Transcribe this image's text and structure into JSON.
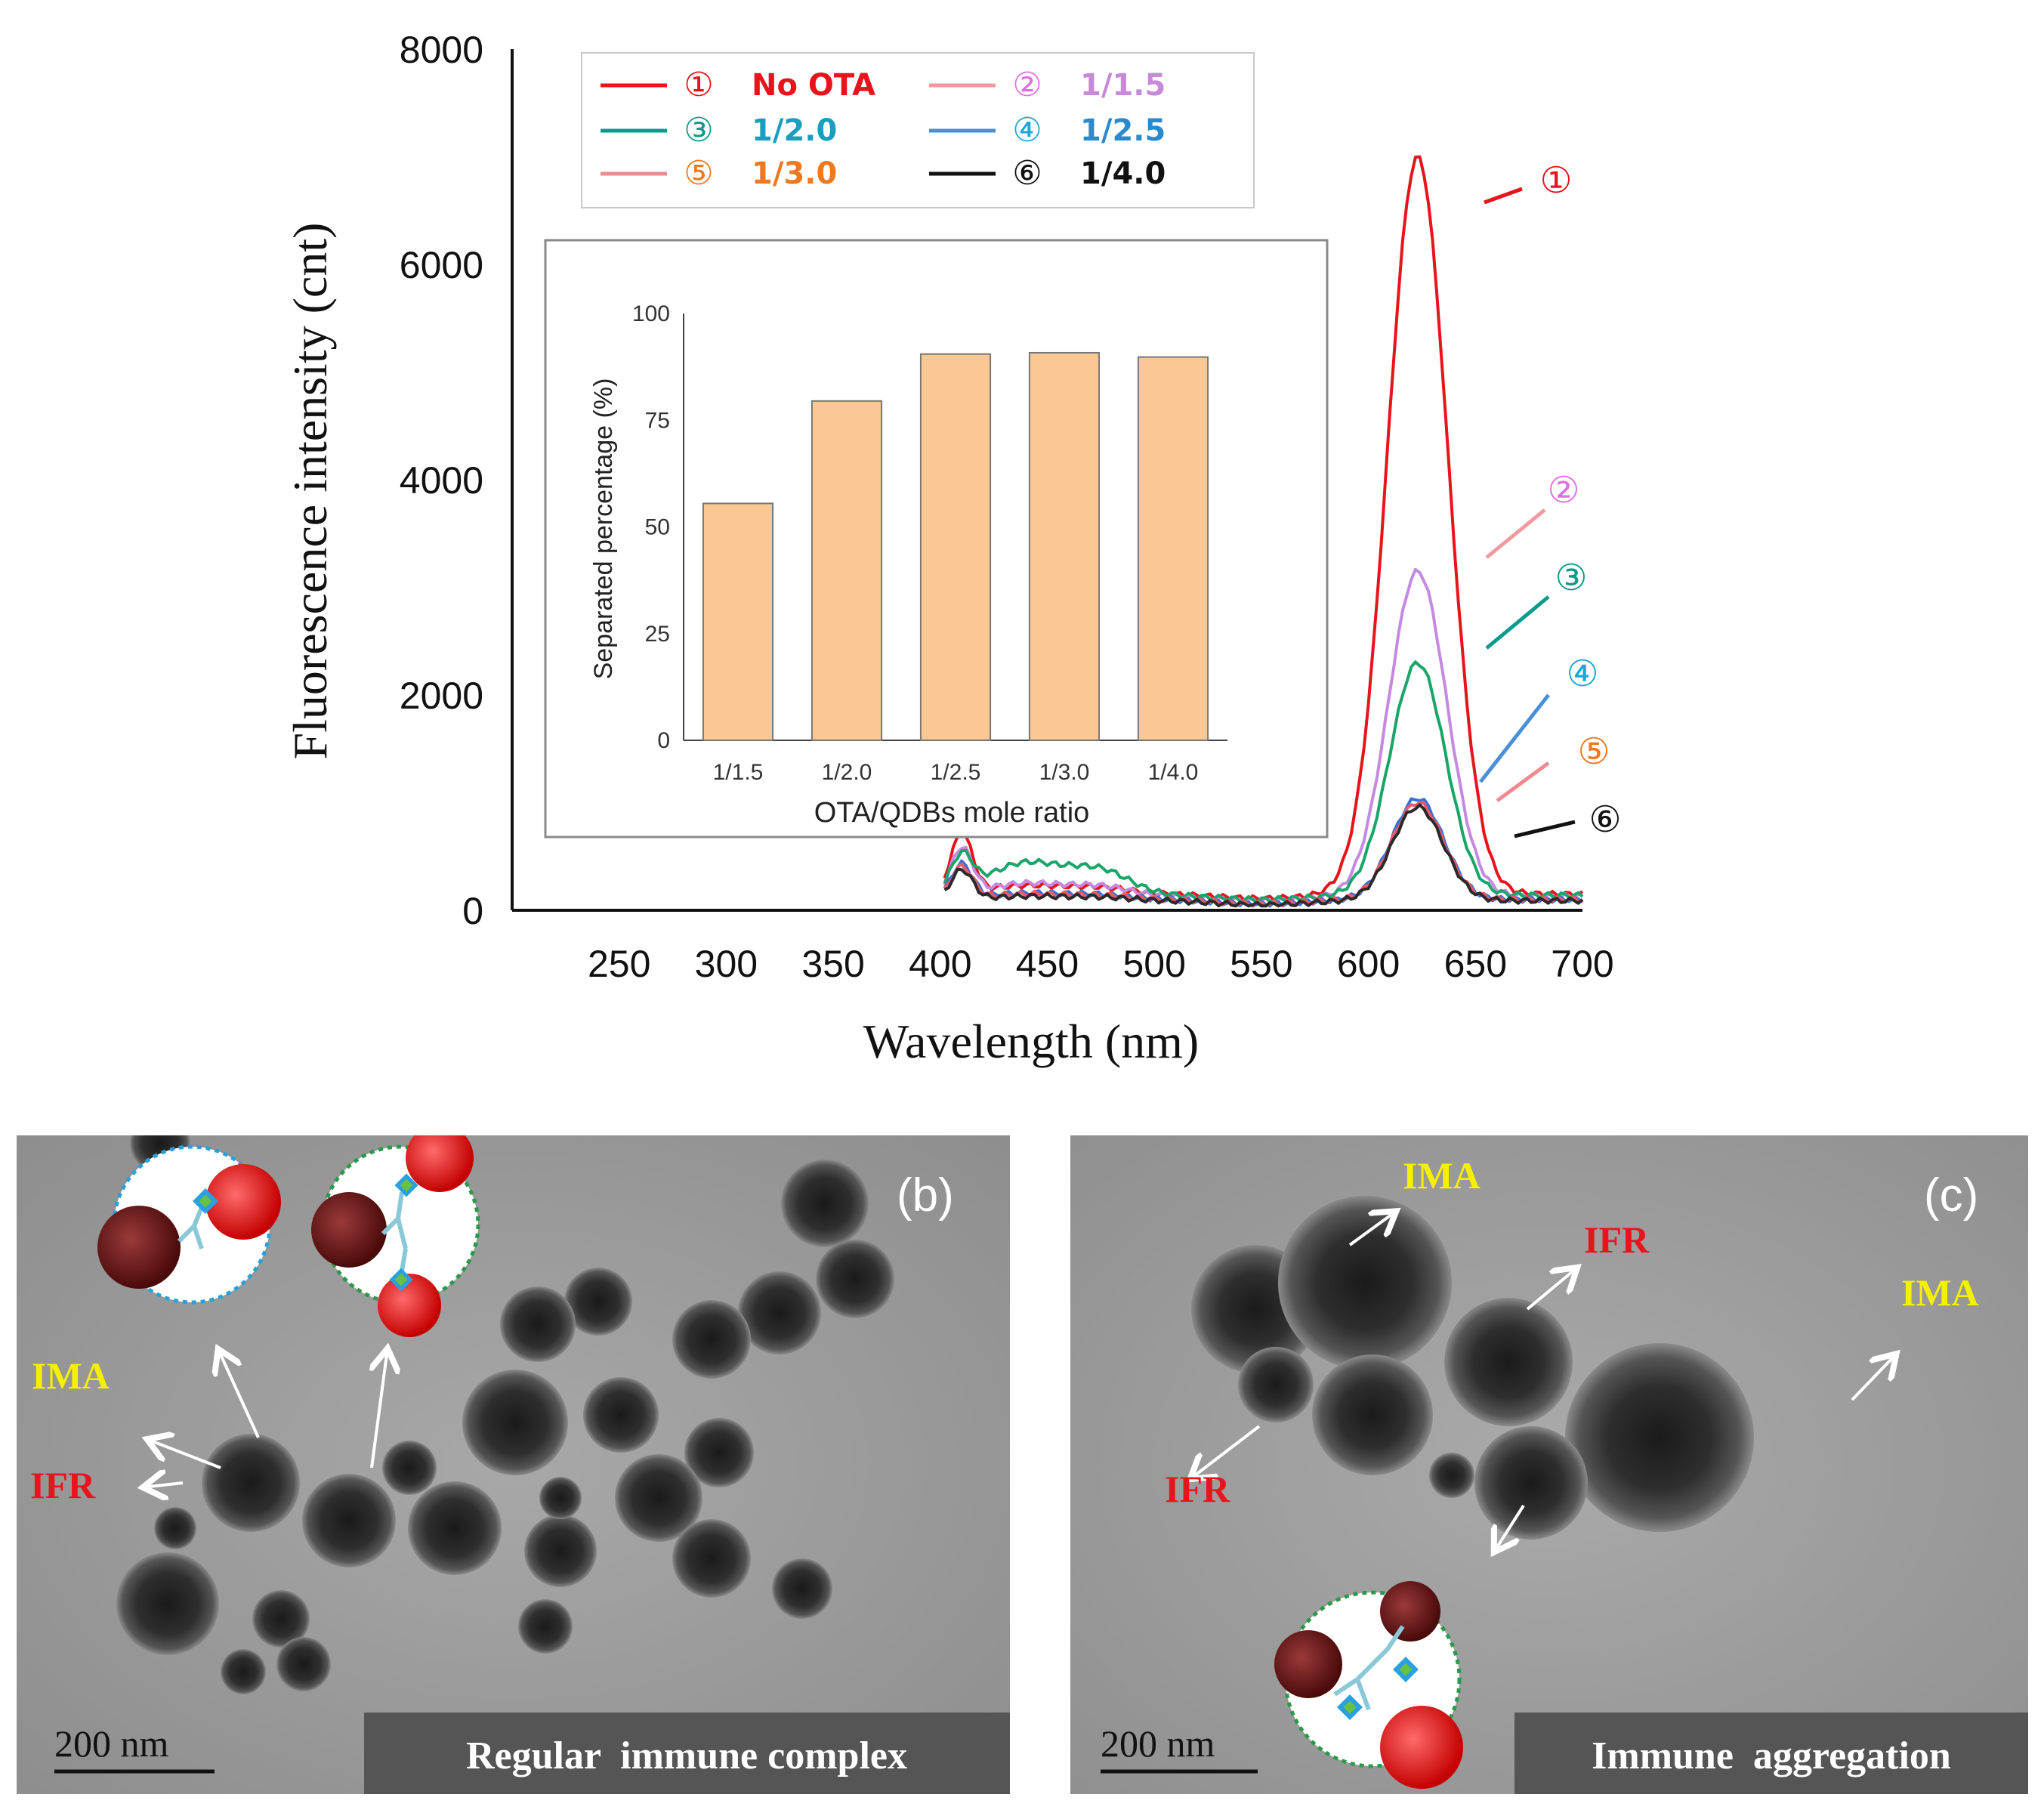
{
  "chart_data": [
    {
      "type": "line",
      "panel": "main",
      "xlabel": "Wavelength (nm)",
      "ylabel": "Fluorescence intensity (cnt)",
      "xlim": [
        200,
        700
      ],
      "ylim": [
        0,
        8000
      ],
      "xticks": [
        "250",
        "300",
        "350",
        "400",
        "450",
        "500",
        "550",
        "600",
        "650",
        "700"
      ],
      "yticks": [
        "0",
        "2000",
        "4000",
        "6000",
        "8000"
      ],
      "series": [
        {
          "id": 1,
          "marker": "①",
          "name": "No OTA",
          "color": "#e8141c",
          "markerColor": "#e8141c",
          "textColor": "#e8141c",
          "peak": 7000,
          "width": 14,
          "base": 150,
          "excPeak": 550,
          "bump": 80
        },
        {
          "id": 2,
          "marker": "②",
          "name": "1/1.5",
          "color": "#c58ae0",
          "lineColor": "#f09aa0",
          "markerColor": "#e070e0",
          "textColor": "#c88ad8",
          "peak": 3150,
          "width": 13.5,
          "base": 130,
          "excPeak": 430,
          "bump": 120
        },
        {
          "id": 3,
          "marker": "③",
          "name": "1/2.0",
          "color": "#1aa56a",
          "lineColor": "#0b9b8e",
          "markerColor": "#109a8a",
          "textColor": "#1a9ec0",
          "peak": 2300,
          "width": 13,
          "base": 140,
          "excPeak": 330,
          "bump": 300
        },
        {
          "id": 4,
          "marker": "④",
          "name": "1/2.5",
          "color": "#3a6fd8",
          "lineColor": "#4a90d8",
          "markerColor": "#1ba8d8",
          "textColor": "#2a8ad0",
          "peak": 1040,
          "width": 12,
          "base": 100,
          "excPeak": 320,
          "bump": 60
        },
        {
          "id": 5,
          "marker": "⑤",
          "name": "1/3.0",
          "color": "#e85a6a",
          "lineColor": "#f08a90",
          "markerColor": "#f07820",
          "textColor": "#f07820",
          "peak": 1000,
          "width": 12,
          "base": 100,
          "excPeak": 300,
          "bump": 50
        },
        {
          "id": 6,
          "marker": "⑥",
          "name": "1/4.0",
          "color": "#2a2a2a",
          "lineColor": "#111111",
          "markerColor": "#111111",
          "textColor": "#111111",
          "peak": 960,
          "width": 12,
          "base": 90,
          "excPeak": 280,
          "bump": 40
        }
      ]
    },
    {
      "type": "bar",
      "panel": "inset",
      "xlabel": "OTA/QDBs mole ratio",
      "ylabel": "Separated percentage (%)",
      "ylim": [
        0,
        100
      ],
      "yticks": [
        "0",
        "25",
        "50",
        "75",
        "100"
      ],
      "categories": [
        "1/1.5",
        "1/2.0",
        "1/2.5",
        "1/3.0",
        "1/4.0"
      ],
      "values": [
        55.5,
        79.5,
        90.5,
        90.8,
        89.8
      ],
      "color": "#fbc893"
    }
  ],
  "tem_panels": [
    {
      "id": "b",
      "label": "(b)",
      "caption": "Regular  immune complex",
      "scale_bar": "200 nm",
      "annotations": [
        {
          "text": "IMA",
          "color": "#f4f000"
        },
        {
          "text": "IFR",
          "color": "#e8141c"
        }
      ]
    },
    {
      "id": "c",
      "label": "(c)",
      "caption": "Immune  aggregation",
      "scale_bar": "200 nm",
      "annotations": [
        {
          "text": "IMA",
          "color": "#f4f000"
        },
        {
          "text": "IFR",
          "color": "#e8141c"
        },
        {
          "text": "IMA",
          "color": "#f4f000"
        },
        {
          "text": "IFR",
          "color": "#e8141c"
        }
      ]
    }
  ]
}
